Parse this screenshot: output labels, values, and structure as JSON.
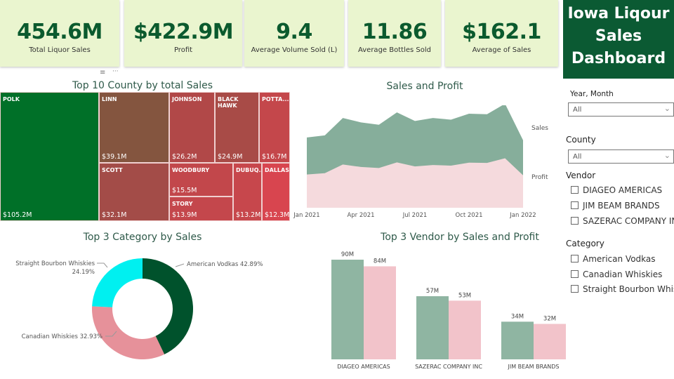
{
  "kpis": [
    {
      "value": "454.6M",
      "label": "Total Liquor Sales"
    },
    {
      "value": "$422.9M",
      "label": "Profit"
    },
    {
      "value": "9.4",
      "label": "Average Volume Sold (L)"
    },
    {
      "value": "11.86",
      "label": "Average Bottles Sold"
    },
    {
      "value": "$162.1",
      "label": "Average of Sales"
    }
  ],
  "title": {
    "line1": "Iowa Liqour",
    "line2": "Sales",
    "line3": "Dashboard"
  },
  "icons": {
    "filter": "filter-icon",
    "more": "more-options-icon"
  },
  "treemap": {
    "title": "Top 10 County by total Sales",
    "cells": [
      {
        "name": "POLK",
        "value": "$105.2M",
        "color": "#007028"
      },
      {
        "name": "LINN",
        "value": "$39.1M",
        "color": "#84553f"
      },
      {
        "name": "SCOTT",
        "value": "$32.1M",
        "color": "#a34c48"
      },
      {
        "name": "JOHNSON",
        "value": "$26.2M",
        "color": "#b14848"
      },
      {
        "name": "BLACK HAWK",
        "value": "$24.9M",
        "color": "#a84b47"
      },
      {
        "name": "POTTA...",
        "value": "$16.7M",
        "color": "#c4474b"
      },
      {
        "name": "WOODBURY",
        "value": "$15.5M",
        "color": "#c2474b"
      },
      {
        "name": "STORY",
        "value": "$13.9M",
        "color": "#c4474c"
      },
      {
        "name": "DUBUQ...",
        "value": "$13.2M",
        "color": "#c7474c"
      },
      {
        "name": "DALLAS",
        "value": "$12.3M",
        "color": "#d8454f"
      }
    ]
  },
  "chart_data": [
    {
      "type": "area",
      "title": "Sales and Profit",
      "x": [
        "Jan 2021",
        "Feb 2021",
        "Mar 2021",
        "Apr 2021",
        "May 2021",
        "Jun 2021",
        "Jul 2021",
        "Aug 2021",
        "Sep 2021",
        "Oct 2021",
        "Nov 2021",
        "Dec 2021",
        "Jan 2022"
      ],
      "xticks": [
        "Jan 2021",
        "Apr 2021",
        "Jul 2021",
        "Oct 2021",
        "Jan 2022"
      ],
      "series": [
        {
          "name": "Sales",
          "color": "#86ae9b",
          "values": [
            26.0,
            26.8,
            33.2,
            31.6,
            30.7,
            35.3,
            32.1,
            33.2,
            32.6,
            34.8,
            34.6,
            38.5,
            25.0
          ]
        },
        {
          "name": "Profit",
          "color": "#f5dadd",
          "values": [
            12.3,
            12.8,
            16.0,
            15.1,
            14.7,
            16.8,
            15.3,
            15.8,
            15.6,
            16.7,
            16.6,
            18.3,
            12.0
          ]
        }
      ]
    },
    {
      "type": "pie",
      "title": "Top 3 Category by Sales",
      "donut": true,
      "slices": [
        {
          "label": "American Vodkas",
          "value": 42.89,
          "display": "American Vodkas 42.89%",
          "color": "#00522c"
        },
        {
          "label": "Canadian Whiskies",
          "value": 32.93,
          "display": "Canadian Whiskies 32.93%",
          "color": "#e6919a"
        },
        {
          "label": "Straight Bourbon Whiskies",
          "value": 24.19,
          "display": "Straight Bourbon Whiskies",
          "display2": "24.19%",
          "color": "#00f0f0"
        }
      ]
    },
    {
      "type": "bar",
      "title": "Top 3 Vendor by Sales and Profit",
      "categories": [
        "DIAGEO AMERICAS",
        "SAZERAC COMPANY INC",
        "JIM BEAM BRANDS"
      ],
      "series": [
        {
          "name": "Sales",
          "color": "#8fb5a2",
          "values": [
            90,
            57,
            34
          ],
          "labels": [
            "90M",
            "57M",
            "34M"
          ]
        },
        {
          "name": "Profit",
          "color": "#f2c3ca",
          "values": [
            84,
            53,
            32
          ],
          "labels": [
            "84M",
            "53M",
            "32M"
          ]
        }
      ]
    }
  ],
  "slicers": {
    "year_month": {
      "label": "Year, Month",
      "value": "All"
    },
    "county": {
      "label": "County",
      "value": "All"
    },
    "vendor": {
      "label": "Vendor",
      "options": [
        "DIAGEO AMERICAS",
        "JIM BEAM BRANDS",
        "SAZERAC COMPANY INC"
      ]
    },
    "category": {
      "label": "Category",
      "options": [
        "American Vodkas",
        "Canadian Whiskies",
        "Straight Bourbon Whisk."
      ]
    }
  }
}
